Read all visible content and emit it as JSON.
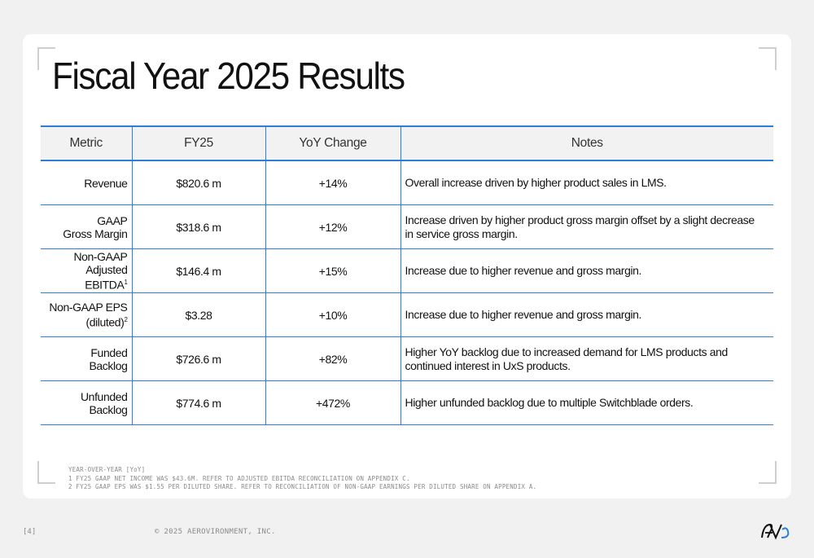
{
  "slide": {
    "title": "Fiscal Year 2025 Results"
  },
  "table": {
    "headers": [
      "Metric",
      "FY25",
      "YoY Change",
      "Notes"
    ],
    "rows": [
      {
        "metric_line1": "Revenue",
        "metric_line2": "",
        "sup": "",
        "fy25": "$820.6 m",
        "yoy": "+14%",
        "notes": "Overall increase driven by higher product sales in LMS."
      },
      {
        "metric_line1": "GAAP",
        "metric_line2": "Gross Margin",
        "sup": "",
        "fy25": "$318.6 m",
        "yoy": "+12%",
        "notes": "Increase driven by higher product gross margin offset by a slight decrease in service gross margin."
      },
      {
        "metric_line1": "Non-GAAP",
        "metric_line2": "Adjusted EBITDA",
        "sup": "1",
        "fy25": "$146.4 m",
        "yoy": "+15%",
        "notes": "Increase due to higher revenue and gross margin."
      },
      {
        "metric_line1": "Non-GAAP EPS",
        "metric_line2": "(diluted)",
        "sup": "2",
        "fy25": "$3.28",
        "yoy": "+10%",
        "notes": "Increase due to higher revenue and gross margin."
      },
      {
        "metric_line1": "Funded",
        "metric_line2": "Backlog",
        "sup": "",
        "fy25": "$726.6 m",
        "yoy": "+82%",
        "notes": "Higher YoY backlog due to increased demand for LMS products and continued interest in UxS products."
      },
      {
        "metric_line1": "Unfunded",
        "metric_line2": "Backlog",
        "sup": "",
        "fy25": "$774.6 m",
        "yoy": "+472%",
        "notes": "Higher unfunded backlog due to multiple Switchblade orders."
      }
    ]
  },
  "footnotes": [
    "YEAR-OVER-YEAR [YoY]",
    "1 FY25 GAAP NET INCOME WAS $43.6M. REFER TO ADJUSTED EBITDA RECONCILIATION ON APPENDIX C.",
    "2 FY25 GAAP EPS WAS $1.55 PER DILUTED SHARE. REFER TO RECONCILIATION OF NON-GAAP EARNINGS PER DILUTED SHARE ON APPENDIX A."
  ],
  "footer": {
    "page_number": "[4]",
    "copyright": "© 2025 AEROVIRONMENT, INC.",
    "logo_text": "AV"
  },
  "colors": {
    "accent": "#2b7fd9",
    "header_bg": "#f2f2f2",
    "value_text": "#6b7a8c"
  }
}
